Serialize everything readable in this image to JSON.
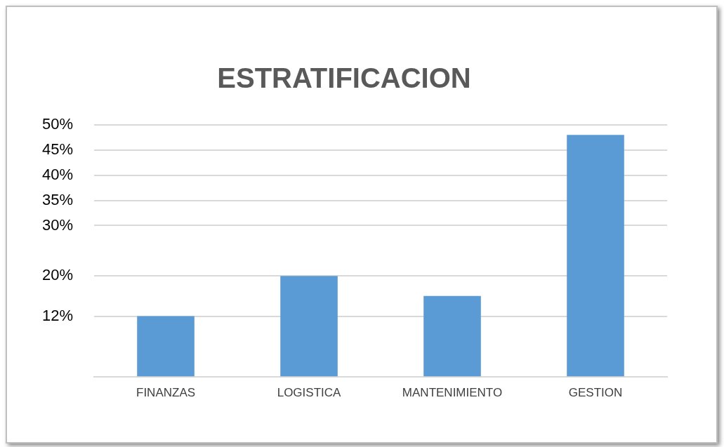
{
  "chart_data": {
    "type": "bar",
    "title": "ESTRATIFICACION",
    "categories": [
      "FINANZAS",
      "LOGISTICA",
      "MANTENIMIENTO",
      "GESTION"
    ],
    "values": [
      12,
      20,
      16,
      48
    ],
    "color": "#5b9bd5",
    "ylim": [
      0,
      50
    ],
    "yticks": [
      {
        "value": 12,
        "label": "12%"
      },
      {
        "value": 20,
        "label": "20%"
      },
      {
        "value": 30,
        "label": "30%"
      },
      {
        "value": 35,
        "label": "35%"
      },
      {
        "value": 40,
        "label": "40%"
      },
      {
        "value": 45,
        "label": "45%"
      },
      {
        "value": 50,
        "label": "50%"
      }
    ],
    "grid": "y",
    "legend": false
  }
}
